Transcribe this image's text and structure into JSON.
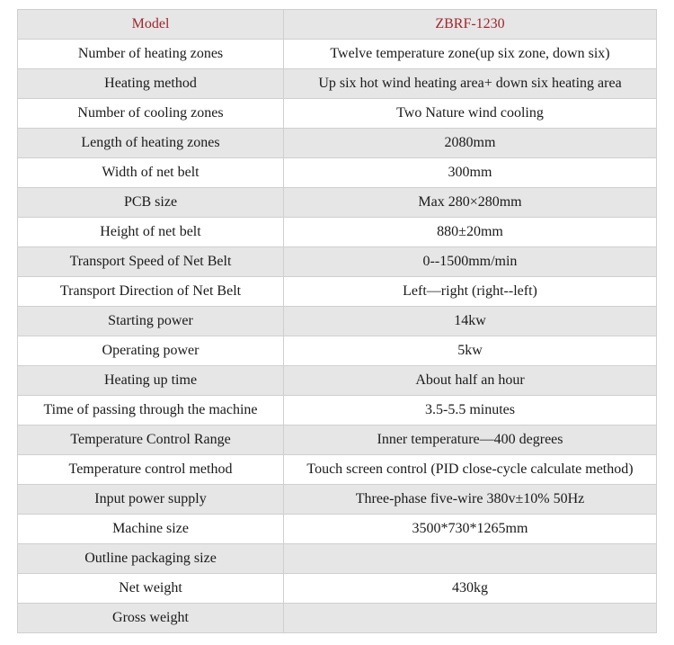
{
  "table": {
    "header": {
      "label": "Model",
      "value": "ZBRF-1230"
    },
    "rows": [
      {
        "label": "Number of heating zones",
        "value": "Twelve temperature zone(up six zone, down six)"
      },
      {
        "label": "Heating method",
        "value": "Up six hot wind heating area+ down six heating area"
      },
      {
        "label": "Number of cooling zones",
        "value": "Two Nature wind cooling"
      },
      {
        "label": "Length of heating zones",
        "value": "2080mm"
      },
      {
        "label": "Width of net belt",
        "value": "300mm"
      },
      {
        "label": "PCB size",
        "value": "Max 280×280mm"
      },
      {
        "label": "Height of net belt",
        "value": "880±20mm"
      },
      {
        "label": "Transport Speed of Net Belt",
        "value": "0--1500mm/min"
      },
      {
        "label": "Transport Direction of Net Belt",
        "value": "Left—right (right--left)"
      },
      {
        "label": "Starting power",
        "value": "14kw"
      },
      {
        "label": "Operating power",
        "value": "5kw"
      },
      {
        "label": "Heating up time",
        "value": "About half an hour"
      },
      {
        "label": "Time of passing through the machine",
        "value": "3.5-5.5 minutes"
      },
      {
        "label": "Temperature Control Range",
        "value": "Inner temperature—400 degrees"
      },
      {
        "label": "Temperature control method",
        "value": "Touch screen control (PID close-cycle calculate method)"
      },
      {
        "label": "Input power supply",
        "value": "Three-phase five-wire 380v±10% 50Hz"
      },
      {
        "label": "Machine size",
        "value": "3500*730*1265mm"
      },
      {
        "label": "Outline packaging size",
        "value": ""
      },
      {
        "label": "Net weight",
        "value": "430kg"
      },
      {
        "label": "Gross weight",
        "value": ""
      }
    ]
  },
  "colors": {
    "header_text": "#a0272d",
    "stripe": "#e6e6e6",
    "border": "#cfcfcf",
    "text": "#1a1a1a"
  }
}
